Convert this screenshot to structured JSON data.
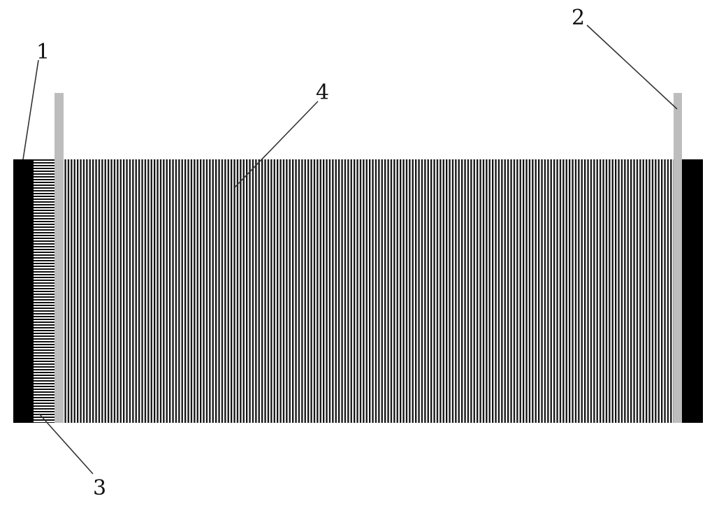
{
  "labels": {
    "one": "1",
    "two": "2",
    "three": "3",
    "four": "4"
  },
  "colors": {
    "background": "#ffffff",
    "end_block": "#000000",
    "electrode_tab": "#bdbdbd",
    "stripe_dark": "#111111",
    "stripe_light": "#ffffff",
    "leader_line": "#333333"
  }
}
